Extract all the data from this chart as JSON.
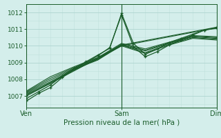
{
  "xlabel": "Pression niveau de la mer( hPa )",
  "background_color": "#d4eeeb",
  "grid_color_major": "#aed4d0",
  "grid_color_minor": "#c0e0dc",
  "line_color": "#1a5c2a",
  "ylim": [
    1006.3,
    1012.5
  ],
  "xlim": [
    0,
    48
  ],
  "xtick_positions": [
    0,
    24,
    48
  ],
  "xtick_labels": [
    "Ven",
    "Sam",
    "Dim"
  ],
  "ytick_positions": [
    1007,
    1008,
    1009,
    1010,
    1011,
    1012
  ],
  "lines": [
    {
      "x": [
        0,
        3,
        6,
        9,
        12,
        15,
        18,
        21,
        24,
        27,
        30,
        33,
        36,
        39,
        42,
        45,
        48
      ],
      "y": [
        1006.7,
        1007.15,
        1007.5,
        1008.1,
        1008.6,
        1009.0,
        1009.4,
        1009.9,
        1011.85,
        1009.95,
        1009.35,
        1009.65,
        1010.05,
        1010.35,
        1010.65,
        1010.95,
        1011.05
      ],
      "marker": true,
      "lw": 0.9
    },
    {
      "x": [
        0,
        3,
        6,
        9,
        12,
        15,
        18,
        21,
        24,
        27,
        30,
        33,
        36,
        39,
        42,
        45,
        48
      ],
      "y": [
        1006.85,
        1007.25,
        1007.65,
        1008.2,
        1008.65,
        1009.05,
        1009.45,
        1009.85,
        1011.95,
        1010.15,
        1009.5,
        1009.8,
        1010.2,
        1010.45,
        1010.7,
        1010.95,
        1011.1
      ],
      "marker": true,
      "lw": 0.9
    },
    {
      "x": [
        0,
        6,
        12,
        18,
        24,
        30,
        36,
        42,
        48
      ],
      "y": [
        1007.1,
        1007.75,
        1008.55,
        1009.2,
        1010.0,
        1009.55,
        1010.05,
        1010.45,
        1010.35
      ],
      "marker": false,
      "lw": 0.8
    },
    {
      "x": [
        0,
        6,
        12,
        18,
        24,
        30,
        36,
        42,
        48
      ],
      "y": [
        1007.15,
        1007.85,
        1008.6,
        1009.15,
        1010.05,
        1009.6,
        1010.1,
        1010.5,
        1010.4
      ],
      "marker": false,
      "lw": 0.8
    },
    {
      "x": [
        0,
        6,
        12,
        18,
        24,
        30,
        36,
        42,
        48
      ],
      "y": [
        1007.2,
        1007.95,
        1008.65,
        1009.2,
        1010.05,
        1009.7,
        1010.15,
        1010.55,
        1010.45
      ],
      "marker": false,
      "lw": 0.8
    },
    {
      "x": [
        0,
        6,
        12,
        18,
        24,
        30,
        36,
        42,
        48
      ],
      "y": [
        1007.25,
        1008.05,
        1008.7,
        1009.25,
        1010.1,
        1009.75,
        1010.18,
        1010.58,
        1010.5
      ],
      "marker": false,
      "lw": 0.8
    },
    {
      "x": [
        0,
        6,
        12,
        18,
        24,
        30,
        36,
        42,
        48
      ],
      "y": [
        1007.3,
        1008.15,
        1008.75,
        1009.3,
        1010.15,
        1009.82,
        1010.22,
        1010.62,
        1010.55
      ],
      "marker": false,
      "lw": 0.8
    },
    {
      "x": [
        0,
        24,
        48
      ],
      "y": [
        1007.0,
        1010.0,
        1011.08
      ],
      "marker": true,
      "lw": 0.8
    },
    {
      "x": [
        0,
        24,
        48
      ],
      "y": [
        1007.05,
        1010.05,
        1011.12
      ],
      "marker": true,
      "lw": 0.8
    }
  ]
}
